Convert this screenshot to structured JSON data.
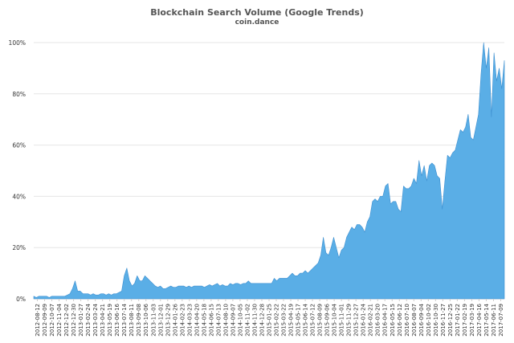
{
  "chart_data": {
    "type": "area",
    "title": "Blockchain Search Volume (Google Trends)",
    "subtitle": "coin.dance",
    "xlabel": "",
    "ylabel": "",
    "ylim": [
      0,
      100
    ],
    "y_ticks": [
      "0%",
      "20%",
      "40%",
      "60%",
      "80%",
      "100%"
    ],
    "grid": true,
    "legend": "none",
    "colors": {
      "fill": "#5aaee6",
      "line": "#3d8fd0",
      "grid": "#e6e6e6",
      "axis": "#cccccc"
    },
    "x_tick_labels": [
      "2012-08-12",
      "2012-09-09",
      "2012-10-07",
      "2012-11-04",
      "2012-12-02",
      "2012-12-30",
      "2013-01-27",
      "2013-02-24",
      "2013-03-24",
      "2013-04-21",
      "2013-05-19",
      "2013-06-16",
      "2013-07-14",
      "2013-08-11",
      "2013-09-08",
      "2013-10-06",
      "2013-11-03",
      "2013-12-01",
      "2013-12-29",
      "2014-01-26",
      "2014-02-23",
      "2014-03-23",
      "2014-04-20",
      "2014-05-18",
      "2014-06-15",
      "2014-07-13",
      "2014-08-10",
      "2014-09-07",
      "2014-10-05",
      "2014-11-02",
      "2014-11-30",
      "2014-12-28",
      "2015-01-25",
      "2015-02-22",
      "2015-03-22",
      "2015-04-19",
      "2015-05-17",
      "2015-06-14",
      "2015-07-12",
      "2015-08-09",
      "2015-09-06",
      "2015-10-04",
      "2015-11-01",
      "2015-11-29",
      "2015-12-27",
      "2016-01-24",
      "2016-02-21",
      "2016-03-20",
      "2016-04-17",
      "2016-05-15",
      "2016-06-12",
      "2016-07-10",
      "2016-08-07",
      "2016-09-04",
      "2016-10-02",
      "2016-10-30",
      "2016-11-27",
      "2016-12-25",
      "2017-01-22",
      "2017-02-19",
      "2017-03-19",
      "2017-04-16",
      "2017-05-14",
      "2017-06-11",
      "2017-07-09"
    ],
    "series": [
      {
        "name": "",
        "values": [
          1,
          0.5,
          1,
          1,
          1,
          1,
          0.5,
          1,
          1,
          1,
          1,
          1,
          1,
          1.5,
          2,
          4,
          7,
          3,
          3,
          2,
          2,
          2,
          1.5,
          2,
          1.5,
          1.5,
          2,
          2,
          1.5,
          2,
          1.5,
          2,
          2,
          2.5,
          3,
          9,
          12,
          7,
          5,
          6,
          9,
          7,
          7,
          9,
          8,
          7,
          6,
          5,
          4.5,
          5,
          4,
          4,
          4.5,
          5,
          4.5,
          4.5,
          5,
          5,
          5,
          4.5,
          5,
          4.5,
          5,
          5,
          5,
          5,
          4.5,
          5,
          5.5,
          5,
          5.5,
          6,
          5,
          5.5,
          5,
          5,
          6,
          5.5,
          6,
          6,
          5.5,
          6,
          6,
          7,
          6,
          6,
          6,
          6,
          6,
          6,
          6,
          6,
          6,
          8,
          7,
          8,
          8,
          8,
          8,
          9,
          10,
          9,
          9,
          10,
          10,
          11,
          10,
          11,
          12,
          13,
          14,
          17,
          24,
          18,
          17,
          20,
          24,
          20,
          16,
          19,
          20,
          24,
          26,
          28,
          27,
          29,
          29,
          28,
          26,
          30,
          32,
          38,
          39,
          38,
          40,
          40,
          44,
          45,
          37,
          38,
          38,
          35,
          34,
          44,
          43,
          43,
          44,
          47,
          45,
          54,
          48,
          52,
          46,
          52,
          53,
          52,
          48,
          47,
          35,
          46,
          56,
          55,
          57,
          58,
          62,
          66,
          65,
          67,
          72,
          63,
          62,
          67,
          72,
          88,
          100,
          90,
          98,
          71,
          96,
          85,
          90,
          82,
          93
        ]
      }
    ]
  }
}
